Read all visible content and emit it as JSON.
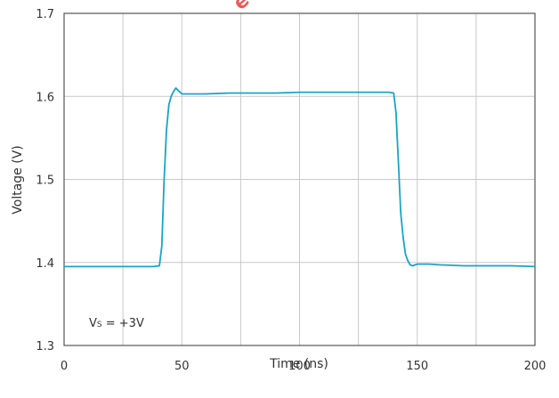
{
  "chart_data": {
    "type": "line",
    "title": "",
    "xlabel": "Time (ns)",
    "ylabel": "Voltage (V)",
    "xlim": [
      0,
      200
    ],
    "ylim": [
      1.3,
      1.7
    ],
    "x_ticks": [
      0,
      50,
      100,
      150,
      200
    ],
    "y_ticks": [
      1.3,
      1.4,
      1.5,
      1.6,
      1.7
    ],
    "y_tick_labels": [
      "1.3",
      "1.4",
      "1.5",
      "1.6",
      "1.7"
    ],
    "grid": true,
    "line_color": "#1aa3c4",
    "annotation": {
      "main": "V",
      "sub": "S",
      "rest": " = +3V"
    },
    "watermark": "ed",
    "series": [
      {
        "x": [
          0,
          10,
          20,
          30,
          38,
          40.5,
          41.5,
          42.5,
          43.5,
          44.5,
          45.5,
          46.5,
          47.5,
          48.5,
          50,
          55,
          60,
          70,
          80,
          90,
          100,
          110,
          120,
          130,
          138,
          140,
          141,
          142,
          143,
          144,
          145,
          146,
          147,
          148,
          150,
          155,
          160,
          170,
          180,
          190,
          200
        ],
        "y": [
          1.395,
          1.395,
          1.395,
          1.395,
          1.395,
          1.396,
          1.42,
          1.5,
          1.56,
          1.59,
          1.6,
          1.606,
          1.61,
          1.607,
          1.603,
          1.603,
          1.603,
          1.604,
          1.604,
          1.604,
          1.605,
          1.605,
          1.605,
          1.605,
          1.605,
          1.604,
          1.58,
          1.52,
          1.46,
          1.43,
          1.41,
          1.402,
          1.397,
          1.396,
          1.398,
          1.398,
          1.397,
          1.396,
          1.396,
          1.396,
          1.395
        ]
      }
    ]
  }
}
